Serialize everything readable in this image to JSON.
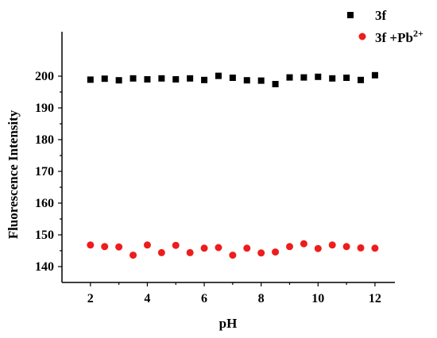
{
  "chart_data": {
    "type": "scatter",
    "title": "",
    "xlabel": "pH",
    "ylabel": "Fluorescence Intensity",
    "xlim": [
      1.0,
      12.7
    ],
    "ylim": [
      135,
      214
    ],
    "xticks": [
      2,
      4,
      6,
      8,
      10,
      12
    ],
    "yticks": [
      140,
      150,
      160,
      170,
      180,
      190,
      200
    ],
    "grid": false,
    "legend_position": "top-right",
    "series": [
      {
        "name": "3f",
        "marker": "square",
        "color": "#000000",
        "x": [
          2,
          2.5,
          3,
          3.5,
          4,
          4.5,
          5,
          5.5,
          6,
          6.5,
          7,
          7.5,
          8,
          8.5,
          9,
          9.5,
          10,
          10.5,
          11,
          11.5,
          12
        ],
        "y": [
          198.9,
          199.2,
          198.7,
          199.3,
          199.0,
          199.3,
          199.0,
          199.3,
          198.8,
          200.1,
          199.5,
          198.7,
          198.6,
          197.5,
          199.6,
          199.6,
          199.8,
          199.3,
          199.5,
          198.8,
          200.3
        ]
      },
      {
        "name": "3f +Pb",
        "name_sup": "2+",
        "marker": "circle",
        "color": "#ee1c1c",
        "x": [
          2,
          2.5,
          3,
          3.5,
          4,
          4.5,
          5,
          5.5,
          6,
          6.5,
          7,
          7.5,
          8,
          8.5,
          9,
          9.5,
          10,
          10.5,
          11,
          11.5,
          12
        ],
        "y": [
          146.8,
          146.3,
          146.2,
          143.6,
          146.8,
          144.4,
          146.7,
          144.4,
          145.8,
          146.0,
          143.6,
          145.8,
          144.3,
          144.6,
          146.3,
          147.2,
          145.7,
          146.8,
          146.3,
          145.9,
          145.8
        ]
      }
    ]
  }
}
